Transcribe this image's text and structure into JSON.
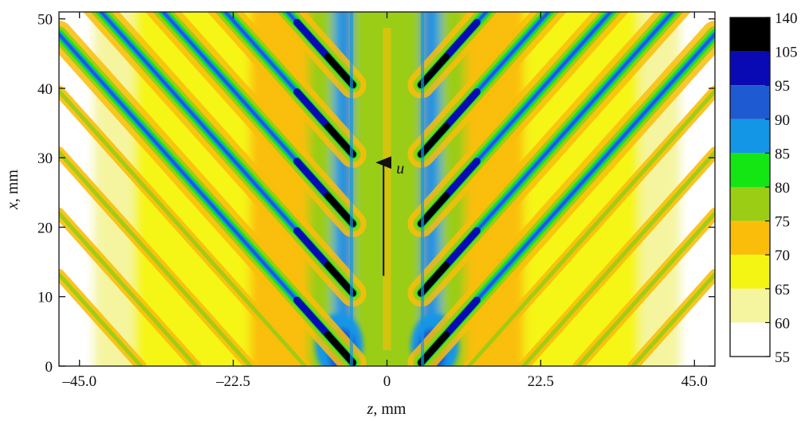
{
  "chart_data": {
    "type": "heatmap",
    "xlabel_var": "z",
    "xlabel_unit": ", mm",
    "ylabel_var": "x",
    "ylabel_unit": ", mm",
    "xlim": [
      -48,
      48
    ],
    "ylim": [
      0,
      51
    ],
    "x_ticks": [
      {
        "value": -45.0,
        "label": "–45.0"
      },
      {
        "value": -22.5,
        "label": "–22.5"
      },
      {
        "value": 0,
        "label": "0"
      },
      {
        "value": 22.5,
        "label": "22.5"
      },
      {
        "value": 45.0,
        "label": "45.0"
      }
    ],
    "y_ticks": [
      {
        "value": 0,
        "label": "0"
      },
      {
        "value": 10,
        "label": "10"
      },
      {
        "value": 20,
        "label": "20"
      },
      {
        "value": 30,
        "label": "30"
      },
      {
        "value": 40,
        "label": "40"
      },
      {
        "value": 50,
        "label": "50"
      }
    ],
    "colorbar": {
      "levels": [
        "140",
        "105",
        "95",
        "90",
        "85",
        "80",
        "75",
        "70",
        "65",
        "60",
        "55"
      ],
      "colors": [
        "#000000",
        "#0a0ab4",
        "#1e5ad2",
        "#1496e6",
        "#14e614",
        "#9acd14",
        "#fabe0a",
        "#f5f514",
        "#f5f5a0",
        "#ffffff"
      ]
    },
    "annotation": {
      "label": "u",
      "x": -0.5,
      "y_from": 13,
      "y_to": 30
    },
    "vortex_ray_origins": [
      {
        "z": 5,
        "x": 0.5
      },
      {
        "z": 5,
        "x": 10.5
      },
      {
        "z": 5,
        "x": 20.5
      },
      {
        "z": 5,
        "x": 30.5
      },
      {
        "z": 5,
        "x": 40.5
      }
    ],
    "vortex_ray_slope_mm_per_mm": 1.1,
    "grid": false,
    "legend": "colorbar-right"
  }
}
